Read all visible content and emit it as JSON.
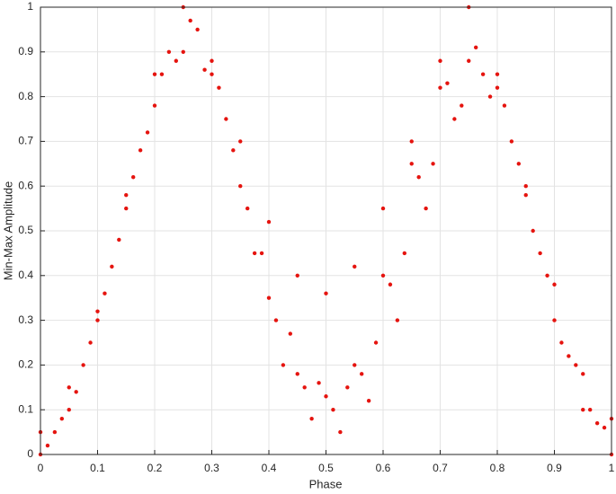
{
  "chart_data": {
    "type": "scatter",
    "xlabel": "Phase",
    "ylabel": "Min-Max Amplitude",
    "color": "#e5140f",
    "grid": true,
    "xlim": [
      0,
      1
    ],
    "ylim": [
      0,
      1
    ],
    "xticks": [
      0,
      0.1,
      0.2,
      0.3,
      0.4,
      0.5,
      0.6,
      0.7,
      0.8,
      0.9,
      1
    ],
    "yticks": [
      0,
      0.1,
      0.2,
      0.3,
      0.4,
      0.5,
      0.6,
      0.7,
      0.8,
      0.9,
      1
    ],
    "x": [
      0,
      0.05,
      0.1,
      0.15,
      0.2,
      0.25,
      0.3,
      0.35,
      0.4,
      0.45,
      0.5,
      0.55,
      0.6,
      0.65,
      0.7,
      0.75,
      0.8,
      0.85,
      0.9,
      0.95,
      1,
      0,
      0.05,
      0.1,
      0.15,
      0.2,
      0.25,
      0.3,
      0.35,
      0.4,
      0.45,
      0.5,
      0.55,
      0.6,
      0.65,
      0.7,
      0.75,
      0.8,
      0.85,
      0.9,
      0.95,
      1,
      0.025,
      0.075,
      0.125,
      0.175,
      0.225,
      0.275,
      0.325,
      0.375,
      0.425,
      0.475,
      0.525,
      0.575,
      0.625,
      0.675,
      0.725,
      0.775,
      0.825,
      0.875,
      0.925,
      0.975,
      0.0125,
      0.0625,
      0.1125,
      0.1625,
      0.2125,
      0.2625,
      0.3125,
      0.3625,
      0.4125,
      0.4625,
      0.5125,
      0.5625,
      0.6125,
      0.6625,
      0.7125,
      0.7625,
      0.8125,
      0.8625,
      0.9125,
      0.9625,
      0.0375,
      0.0875,
      0.1375,
      0.1875,
      0.2375,
      0.2875,
      0.3375,
      0.3875,
      0.4375,
      0.4875,
      0.5375,
      0.5875,
      0.6375,
      0.6875,
      0.7375,
      0.7875,
      0.8375,
      0.8875,
      0.9375,
      0.9875
    ],
    "values": [
      0,
      0.1,
      0.3,
      0.58,
      0.85,
      1,
      0.88,
      0.6,
      0.35,
      0.18,
      0.13,
      0.2,
      0.4,
      0.65,
      0.88,
      1,
      0.85,
      0.58,
      0.3,
      0.1,
      0,
      0.05,
      0.15,
      0.32,
      0.55,
      0.78,
      0.9,
      0.85,
      0.7,
      0.52,
      0.4,
      0.36,
      0.42,
      0.55,
      0.7,
      0.82,
      0.88,
      0.82,
      0.6,
      0.38,
      0.18,
      0.08,
      0.05,
      0.2,
      0.42,
      0.68,
      0.9,
      0.95,
      0.75,
      0.45,
      0.2,
      0.08,
      0.05,
      0.12,
      0.3,
      0.55,
      0.75,
      0.85,
      0.7,
      0.45,
      0.22,
      0.07,
      0.02,
      0.14,
      0.36,
      0.62,
      0.85,
      0.97,
      0.82,
      0.55,
      0.3,
      0.15,
      0.1,
      0.18,
      0.38,
      0.62,
      0.83,
      0.91,
      0.78,
      0.5,
      0.25,
      0.1,
      0.08,
      0.25,
      0.48,
      0.72,
      0.88,
      0.86,
      0.68,
      0.45,
      0.27,
      0.16,
      0.15,
      0.25,
      0.45,
      0.65,
      0.78,
      0.8,
      0.65,
      0.4,
      0.2,
      0.06
    ]
  }
}
